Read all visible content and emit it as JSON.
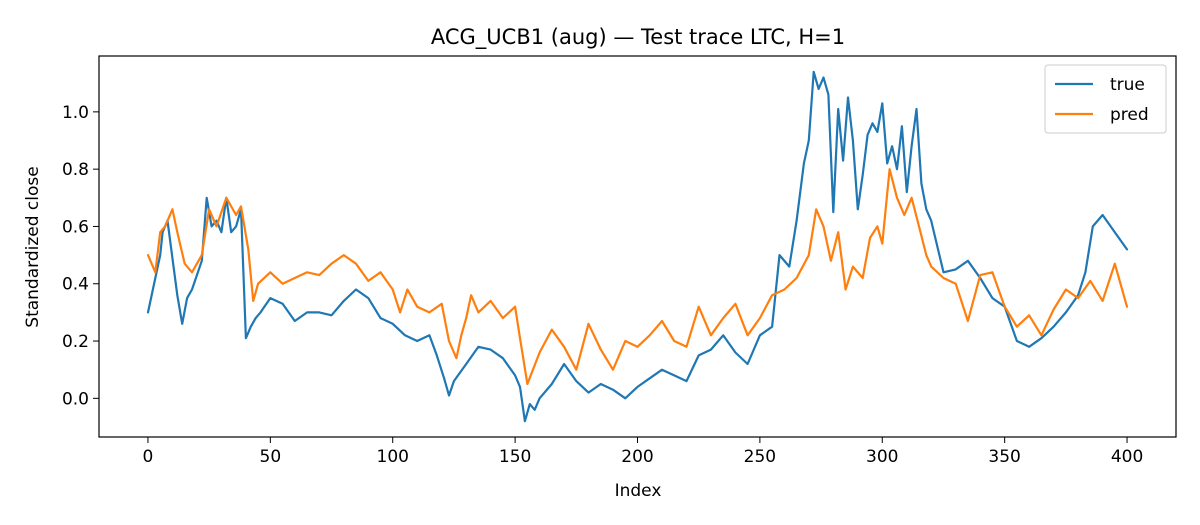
{
  "chart_data": {
    "type": "line",
    "title": "ACG_UCB1 (aug) — Test trace LTC, H=1",
    "xlabel": "Index",
    "ylabel": "Standardized close",
    "xlim": [
      -20,
      420
    ],
    "ylim": [
      -0.135,
      1.195
    ],
    "xticks": [
      0,
      50,
      100,
      150,
      200,
      250,
      300,
      350,
      400
    ],
    "yticks": [
      0.0,
      0.2,
      0.4,
      0.6,
      0.8,
      1.0
    ],
    "ytick_labels": [
      "0.0",
      "0.2",
      "0.4",
      "0.6",
      "0.8",
      "1.0"
    ],
    "grid": false,
    "legend": "top-right",
    "series": [
      {
        "name": "true",
        "color": "#1f77b4",
        "x": [
          0,
          5,
          6,
          8,
          12,
          14,
          16,
          18,
          22,
          24,
          26,
          28,
          30,
          32,
          34,
          36,
          38,
          40,
          42,
          44,
          46,
          50,
          55,
          60,
          65,
          70,
          75,
          80,
          85,
          90,
          95,
          100,
          105,
          110,
          115,
          118,
          121,
          123,
          125,
          130,
          135,
          140,
          145,
          150,
          152,
          154,
          156,
          158,
          160,
          165,
          170,
          175,
          180,
          185,
          190,
          195,
          200,
          205,
          210,
          215,
          220,
          225,
          230,
          235,
          240,
          245,
          250,
          255,
          258,
          262,
          265,
          268,
          270,
          272,
          274,
          276,
          278,
          280,
          282,
          284,
          286,
          288,
          290,
          292,
          294,
          296,
          298,
          300,
          302,
          304,
          306,
          308,
          310,
          312,
          314,
          316,
          318,
          320,
          325,
          330,
          335,
          340,
          345,
          350,
          355,
          360,
          365,
          370,
          375,
          380,
          383,
          386,
          390,
          395,
          400
        ],
        "y": [
          0.3,
          0.5,
          0.58,
          0.62,
          0.36,
          0.26,
          0.35,
          0.38,
          0.48,
          0.7,
          0.6,
          0.62,
          0.58,
          0.7,
          0.58,
          0.6,
          0.66,
          0.21,
          0.25,
          0.28,
          0.3,
          0.35,
          0.33,
          0.27,
          0.3,
          0.3,
          0.29,
          0.34,
          0.38,
          0.35,
          0.28,
          0.26,
          0.22,
          0.2,
          0.22,
          0.15,
          0.07,
          0.01,
          0.06,
          0.12,
          0.18,
          0.17,
          0.14,
          0.08,
          0.04,
          -0.08,
          -0.02,
          -0.04,
          0.0,
          0.05,
          0.12,
          0.06,
          0.02,
          0.05,
          0.03,
          0.0,
          0.04,
          0.07,
          0.1,
          0.08,
          0.06,
          0.15,
          0.17,
          0.22,
          0.16,
          0.12,
          0.22,
          0.25,
          0.5,
          0.46,
          0.62,
          0.82,
          0.9,
          1.14,
          1.08,
          1.12,
          1.06,
          0.65,
          1.01,
          0.83,
          1.05,
          0.9,
          0.66,
          0.78,
          0.92,
          0.96,
          0.93,
          1.03,
          0.82,
          0.88,
          0.8,
          0.95,
          0.72,
          0.88,
          1.01,
          0.75,
          0.66,
          0.62,
          0.44,
          0.45,
          0.48,
          0.42,
          0.35,
          0.32,
          0.2,
          0.18,
          0.21,
          0.25,
          0.3,
          0.36,
          0.44,
          0.6,
          0.64,
          0.58,
          0.52
        ]
      },
      {
        "name": "pred",
        "color": "#ff7f0e",
        "x": [
          0,
          3,
          5,
          7,
          10,
          12,
          15,
          18,
          22,
          25,
          28,
          32,
          36,
          38,
          41,
          43,
          45,
          50,
          55,
          60,
          65,
          70,
          75,
          80,
          85,
          90,
          95,
          100,
          103,
          106,
          110,
          115,
          120,
          123,
          126,
          128,
          130,
          132,
          135,
          140,
          145,
          150,
          152,
          155,
          160,
          165,
          170,
          175,
          180,
          185,
          190,
          195,
          200,
          205,
          210,
          215,
          220,
          225,
          230,
          235,
          240,
          245,
          250,
          255,
          260,
          265,
          270,
          273,
          276,
          279,
          282,
          285,
          288,
          292,
          295,
          298,
          300,
          303,
          306,
          309,
          312,
          315,
          318,
          320,
          325,
          330,
          335,
          340,
          345,
          350,
          355,
          360,
          365,
          370,
          375,
          380,
          385,
          390,
          395,
          400
        ],
        "y": [
          0.5,
          0.44,
          0.58,
          0.6,
          0.66,
          0.58,
          0.47,
          0.44,
          0.5,
          0.66,
          0.6,
          0.7,
          0.64,
          0.67,
          0.52,
          0.34,
          0.4,
          0.44,
          0.4,
          0.42,
          0.44,
          0.43,
          0.47,
          0.5,
          0.47,
          0.41,
          0.44,
          0.38,
          0.3,
          0.38,
          0.32,
          0.3,
          0.33,
          0.2,
          0.14,
          0.22,
          0.28,
          0.36,
          0.3,
          0.34,
          0.28,
          0.32,
          0.21,
          0.05,
          0.16,
          0.24,
          0.18,
          0.1,
          0.26,
          0.17,
          0.1,
          0.2,
          0.18,
          0.22,
          0.27,
          0.2,
          0.18,
          0.32,
          0.22,
          0.28,
          0.33,
          0.22,
          0.28,
          0.36,
          0.38,
          0.42,
          0.5,
          0.66,
          0.6,
          0.48,
          0.58,
          0.38,
          0.46,
          0.42,
          0.56,
          0.6,
          0.54,
          0.8,
          0.7,
          0.64,
          0.7,
          0.6,
          0.5,
          0.46,
          0.42,
          0.4,
          0.27,
          0.43,
          0.44,
          0.32,
          0.25,
          0.29,
          0.22,
          0.31,
          0.38,
          0.35,
          0.41,
          0.34,
          0.47,
          0.32
        ]
      }
    ]
  }
}
